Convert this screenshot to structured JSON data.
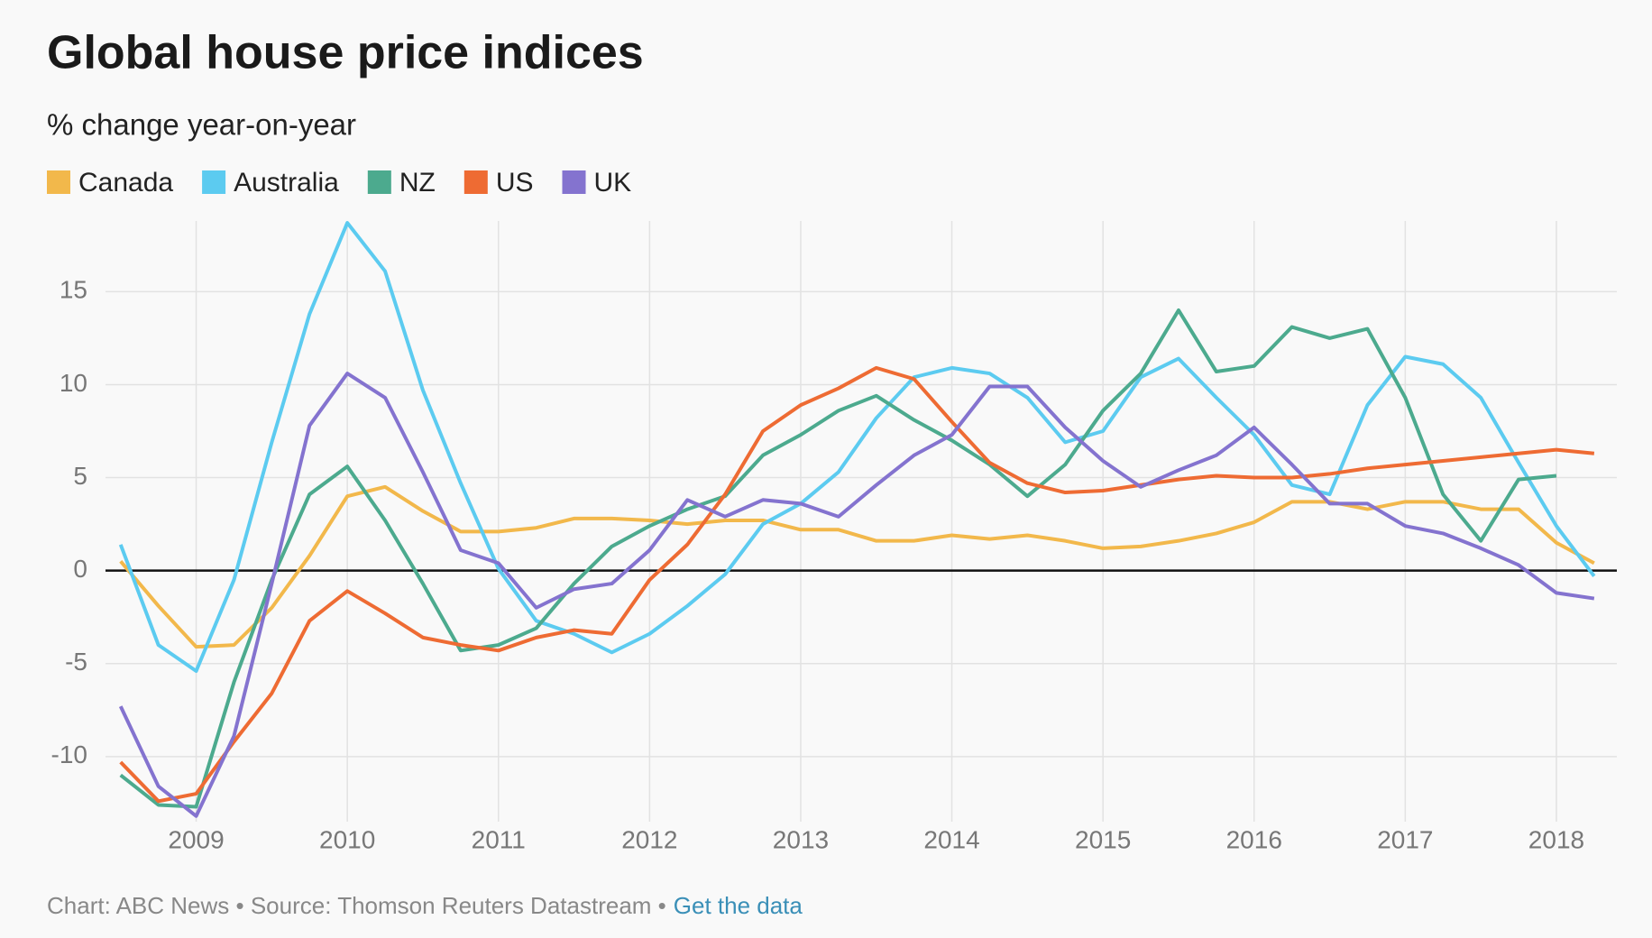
{
  "chart_data": {
    "type": "line",
    "title": "Global house price indices",
    "subtitle": "% change year-on-year",
    "source": "Chart: ABC News • Source: Thomson Reuters Datastream •",
    "link": "Get the data",
    "x": [
      2008.5,
      2008.75,
      2009,
      2009.25,
      2009.5,
      2009.75,
      2010,
      2010.25,
      2010.5,
      2010.75,
      2011,
      2011.25,
      2011.5,
      2011.75,
      2012,
      2012.25,
      2012.5,
      2012.75,
      2013,
      2013.25,
      2013.5,
      2013.75,
      2014,
      2014.25,
      2014.5,
      2014.75,
      2015,
      2015.25,
      2015.5,
      2015.75,
      2016,
      2016.25,
      2016.5,
      2016.75,
      2017,
      2017.25,
      2017.5,
      2017.75,
      2018,
      2018.25
    ],
    "xlim": [
      2008.4,
      2018.4
    ],
    "xticks": [
      2009,
      2010,
      2011,
      2012,
      2013,
      2014,
      2015,
      2016,
      2017,
      2018
    ],
    "ylim": [
      -13.5,
      18.8
    ],
    "yticks": [
      -10,
      -5,
      0,
      5,
      10,
      15
    ],
    "grid": true,
    "series": [
      {
        "name": "Canada",
        "color": "#f2b84b",
        "values": [
          0.5,
          -1.9,
          -4.1,
          -4.0,
          -2.0,
          0.8,
          4.0,
          4.5,
          3.2,
          2.1,
          2.1,
          2.3,
          2.8,
          2.8,
          2.7,
          2.5,
          2.7,
          2.7,
          2.2,
          2.2,
          1.6,
          1.6,
          1.9,
          1.7,
          1.9,
          1.6,
          1.2,
          1.3,
          1.6,
          2.0,
          2.6,
          3.7,
          3.7,
          3.3,
          3.7,
          3.7,
          3.3,
          3.3,
          1.5,
          0.4
        ]
      },
      {
        "name": "Australia",
        "color": "#5ccbf0",
        "values": [
          1.4,
          -4.0,
          -5.4,
          -0.5,
          6.9,
          13.8,
          18.7,
          16.1,
          9.7,
          4.7,
          0.1,
          -2.7,
          -3.4,
          -4.4,
          -3.4,
          -1.9,
          -0.2,
          2.5,
          3.6,
          5.3,
          8.2,
          10.4,
          10.9,
          10.6,
          9.3,
          6.9,
          7.5,
          10.4,
          11.4,
          9.3,
          7.3,
          4.6,
          4.1,
          8.9,
          11.5,
          11.1,
          9.3,
          5.8,
          2.4,
          -0.3
        ]
      },
      {
        "name": "NZ",
        "color": "#4caa8e",
        "values": [
          -11.0,
          -12.6,
          -12.7,
          -6.0,
          -0.5,
          4.1,
          5.6,
          2.7,
          -0.7,
          -4.3,
          -4.0,
          -3.1,
          -0.7,
          1.3,
          2.4,
          3.3,
          4.0,
          6.2,
          7.3,
          8.6,
          9.4,
          8.1,
          7.0,
          5.7,
          4.0,
          5.7,
          8.6,
          10.6,
          14.0,
          10.7,
          11.0,
          13.1,
          12.5,
          13.0,
          9.3,
          4.1,
          1.6,
          4.9,
          5.1,
          null
        ]
      },
      {
        "name": "US",
        "color": "#ee6b33",
        "values": [
          -10.3,
          -12.4,
          -12.0,
          -9.2,
          -6.6,
          -2.7,
          -1.1,
          -2.3,
          -3.6,
          -4.0,
          -4.3,
          -3.6,
          -3.2,
          -3.4,
          -0.5,
          1.4,
          4.1,
          7.5,
          8.9,
          9.8,
          10.9,
          10.3,
          8.0,
          5.8,
          4.7,
          4.2,
          4.3,
          4.6,
          4.9,
          5.1,
          5.0,
          5.0,
          5.2,
          5.5,
          5.7,
          5.9,
          6.1,
          6.3,
          6.5,
          6.3
        ]
      },
      {
        "name": "UK",
        "color": "#8473cf",
        "values": [
          -7.3,
          -11.6,
          -13.2,
          -8.9,
          -0.7,
          7.8,
          10.6,
          9.3,
          5.3,
          1.1,
          0.4,
          -2.0,
          -1.0,
          -0.7,
          1.1,
          3.8,
          2.9,
          3.8,
          3.6,
          2.9,
          4.6,
          6.2,
          7.3,
          9.9,
          9.9,
          7.7,
          5.9,
          4.5,
          5.4,
          6.2,
          7.7,
          5.7,
          3.6,
          3.6,
          2.4,
          2.0,
          1.2,
          0.3,
          -1.2,
          -1.5
        ]
      }
    ]
  }
}
